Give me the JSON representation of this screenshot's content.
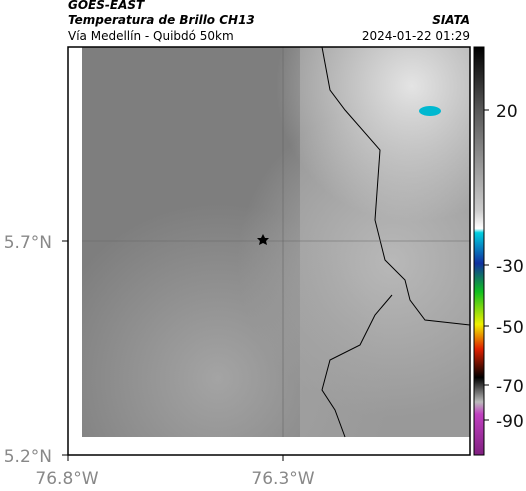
{
  "header": {
    "source": "GOES-EAST",
    "title": "Temperatura de Brillo CH13",
    "brand": "SIATA",
    "subtitle": "Vía Medellín - Quibdó 50km",
    "timestamp": "2024-01-22 01:29"
  },
  "map": {
    "lat_labels": [
      "5.7°N",
      "5.2°N"
    ],
    "lon_labels": [
      "76.8°W",
      "76.3°W"
    ]
  },
  "colorbar": {
    "labels": [
      20,
      -30,
      -50,
      -70,
      -90
    ]
  }
}
